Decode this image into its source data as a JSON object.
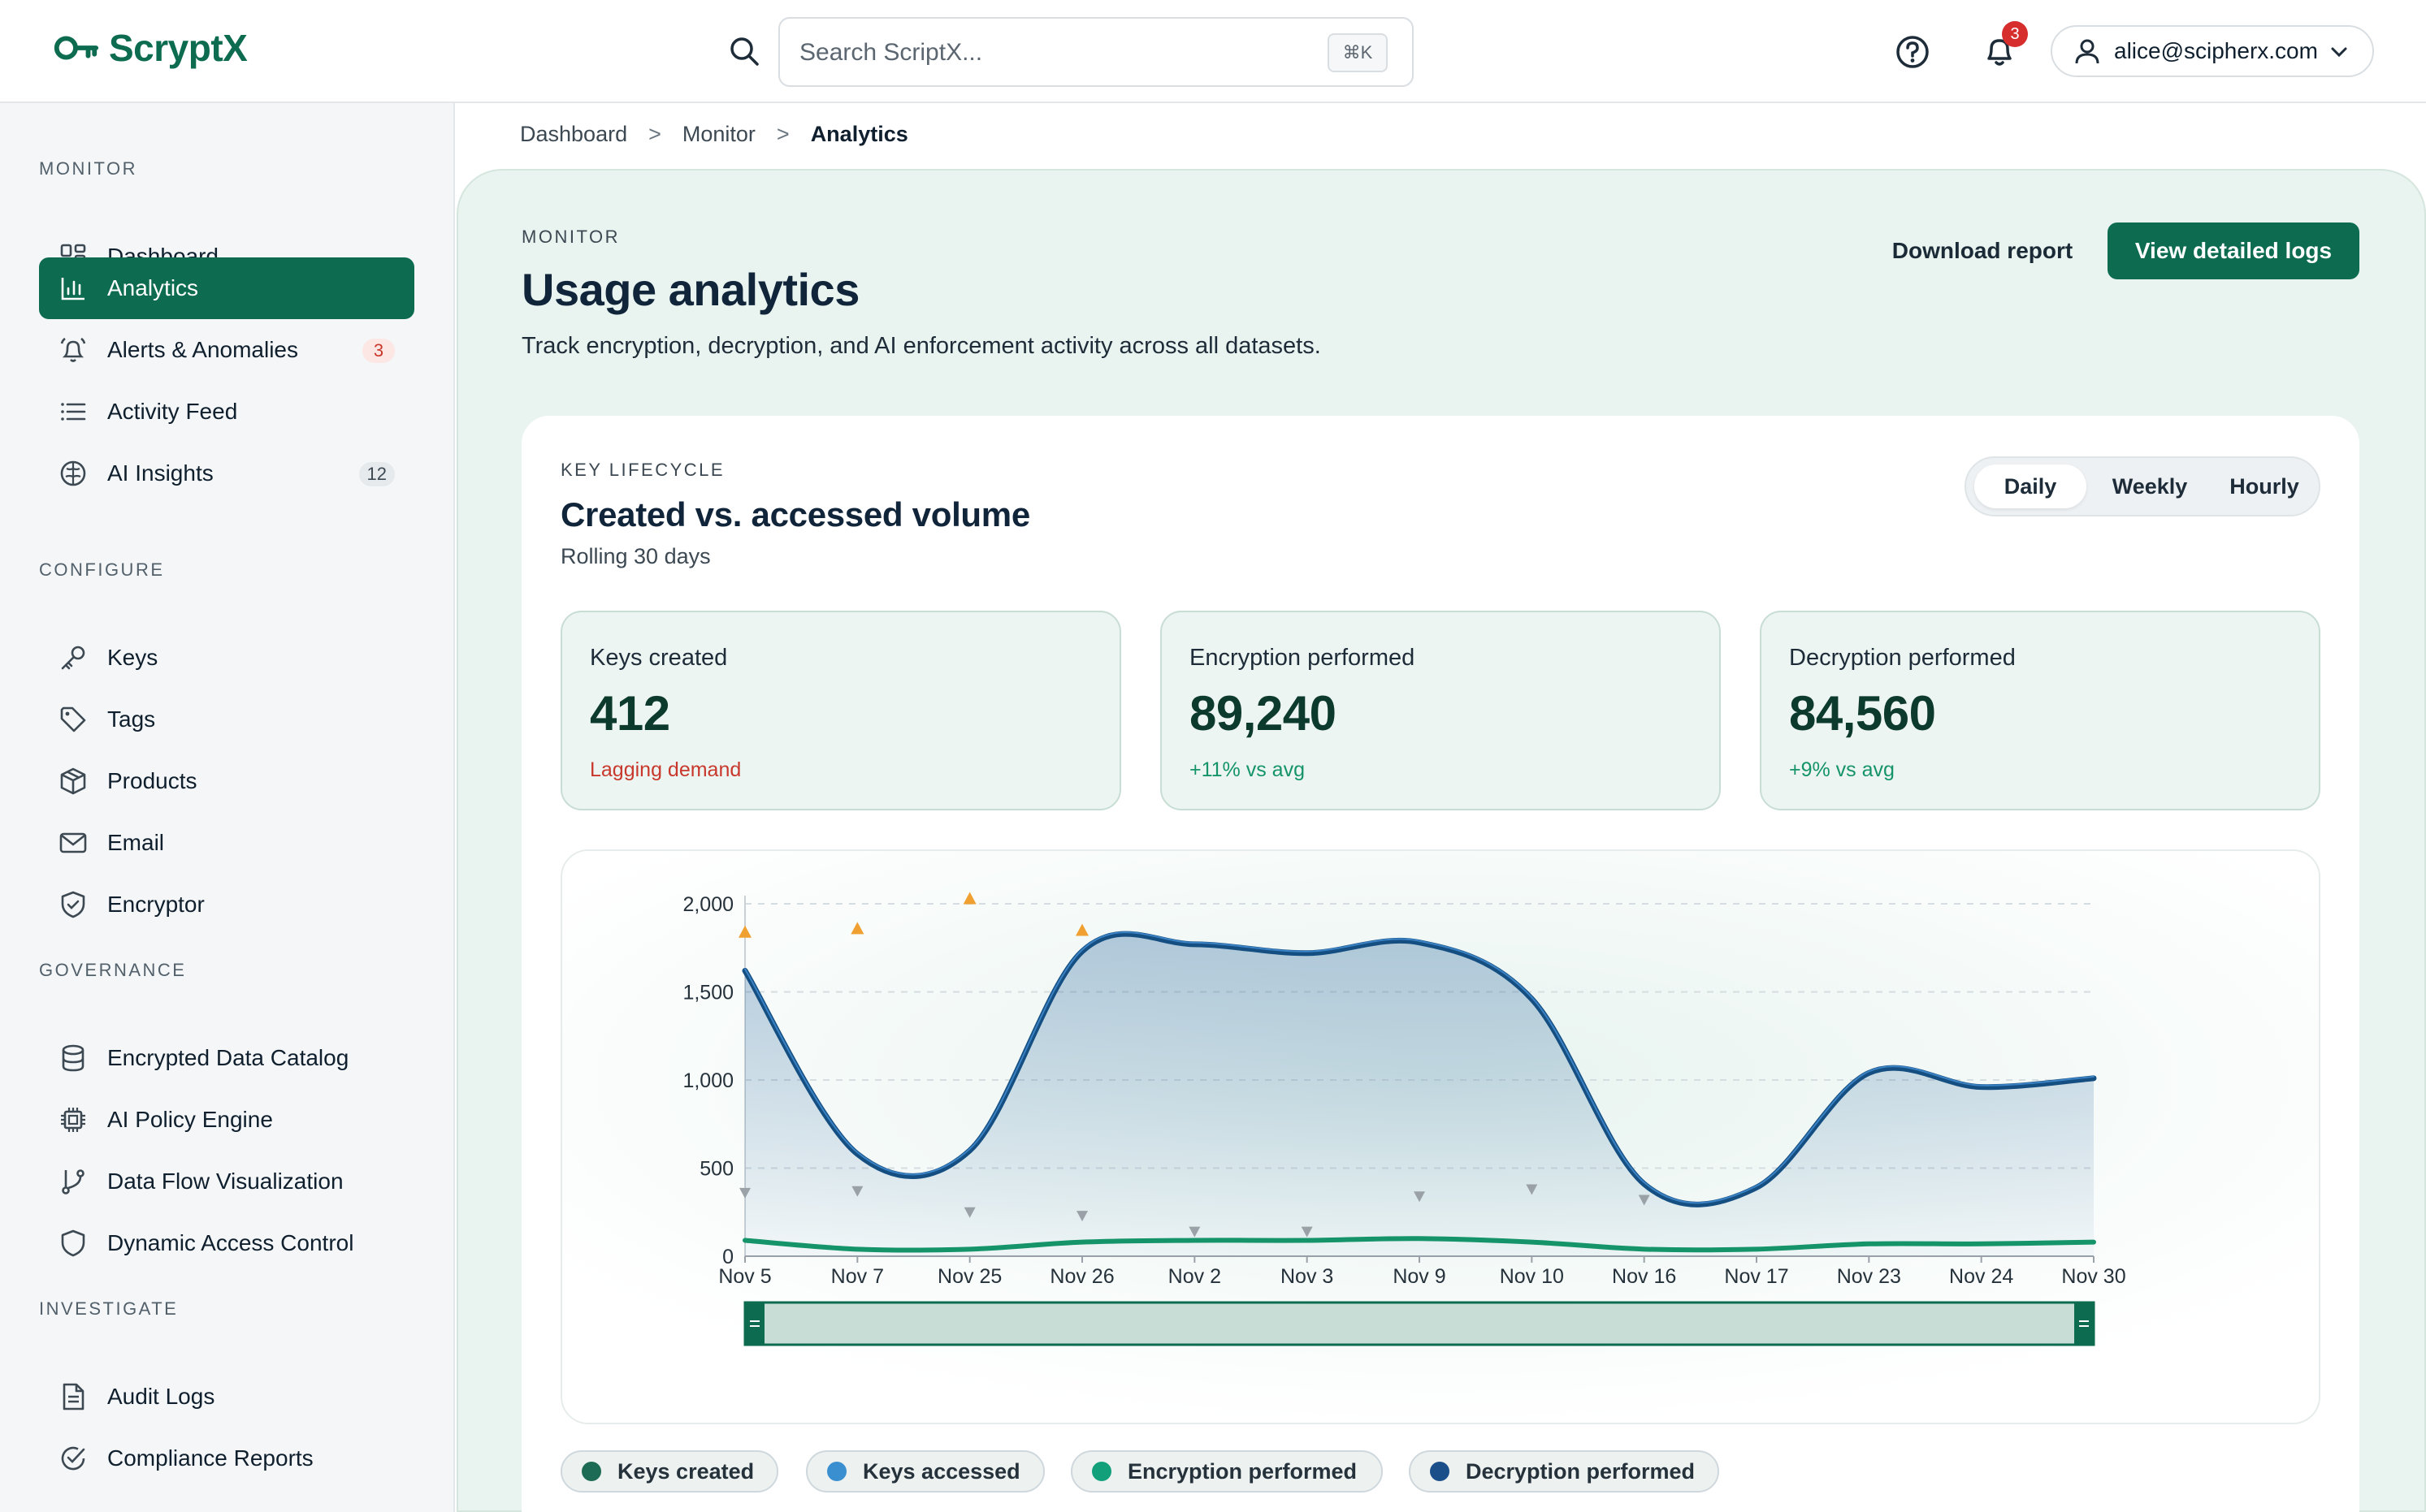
{
  "app": {
    "name": "ScryptX",
    "brand_color": "#0d6b50"
  },
  "header": {
    "search": {
      "placeholder": "Search ScriptX...",
      "shortcut": "⌘K"
    },
    "notifications_count": "3",
    "user_email": "alice@scipherx.com"
  },
  "sidebar": {
    "sections": [
      {
        "label": "MONITOR",
        "items": [
          {
            "label": "Dashboard",
            "icon": "dashboard-icon"
          },
          {
            "label": "Analytics",
            "icon": "bar-chart-icon",
            "active": true
          },
          {
            "label": "Alerts & Anomalies",
            "icon": "bell-alert-icon",
            "badge": "3"
          },
          {
            "label": "Activity Feed",
            "icon": "list-icon"
          },
          {
            "label": "AI Insights",
            "icon": "brain-icon",
            "badge": "12"
          }
        ]
      },
      {
        "label": "CONFIGURE",
        "items": [
          {
            "label": "Keys",
            "icon": "key-icon"
          },
          {
            "label": "Tags",
            "icon": "tag-icon"
          },
          {
            "label": "Products",
            "icon": "box-icon"
          },
          {
            "label": "Email",
            "icon": "mail-icon"
          },
          {
            "label": "Encryptor",
            "icon": "shield-check-icon"
          }
        ]
      },
      {
        "label": "GOVERNANCE",
        "items": [
          {
            "label": "Encrypted Data Catalog",
            "icon": "database-icon"
          },
          {
            "label": "AI Policy Engine",
            "icon": "cpu-icon"
          },
          {
            "label": "Data Flow Visualization",
            "icon": "git-branch-icon"
          },
          {
            "label": "Dynamic Access Control",
            "icon": "shield-icon"
          }
        ]
      },
      {
        "label": "INVESTIGATE",
        "items": [
          {
            "label": "Audit Logs",
            "icon": "document-icon"
          },
          {
            "label": "Compliance Reports",
            "icon": "check-circle-icon"
          }
        ]
      }
    ]
  },
  "breadcrumb": [
    "Dashboard",
    "Monitor",
    "Analytics"
  ],
  "page": {
    "eyebrow": "MONITOR",
    "title": "Usage analytics",
    "subtitle": "Track encryption, decryption, and AI enforcement activity across all datasets.",
    "download_label": "Download report",
    "view_logs_label": "View detailed logs"
  },
  "card": {
    "eyebrow": "KEY LIFECYCLE",
    "title": "Created vs. accessed volume",
    "subtitle": "Rolling 30 days",
    "tabs": [
      {
        "label": "Daily",
        "active": true
      },
      {
        "label": "Weekly"
      },
      {
        "label": "Hourly"
      }
    ],
    "stats": [
      {
        "label": "Keys created",
        "value": "412",
        "note": "Lagging demand",
        "tone": "bad"
      },
      {
        "label": "Encryption performed",
        "value": "89,240",
        "note": "+11% vs avg",
        "tone": "good"
      },
      {
        "label": "Decryption performed",
        "value": "84,560",
        "note": "+9% vs avg",
        "tone": "good"
      }
    ]
  },
  "chart_data": {
    "type": "area",
    "categories": [
      "Nov 5",
      "Nov 7",
      "Nov 25",
      "Nov 26",
      "Nov 2",
      "Nov 3",
      "Nov 9",
      "Nov 10",
      "Nov 16",
      "Nov 17",
      "Nov 23",
      "Nov 24",
      "Nov 30"
    ],
    "ylim": [
      0,
      2000
    ],
    "yticks": [
      0,
      500,
      1000,
      1500,
      2000
    ],
    "ytick_labels": [
      "0",
      "500",
      "1,000",
      "1,500",
      "2,000"
    ],
    "grid": true,
    "series": [
      {
        "name": "Keys accessed",
        "color": "#1f5f99",
        "values": [
          1620,
          580,
          600,
          1730,
          1770,
          1720,
          1780,
          1460,
          410,
          390,
          1040,
          960,
          1010
        ]
      },
      {
        "name": "Encryption performed",
        "color": "#159469",
        "values": [
          90,
          40,
          40,
          80,
          90,
          90,
          100,
          80,
          40,
          40,
          70,
          70,
          80
        ]
      }
    ],
    "markers_up": {
      "color": "#f0a030",
      "points": [
        [
          0,
          1840
        ],
        [
          1,
          1860
        ],
        [
          2,
          2030
        ],
        [
          3,
          1850
        ]
      ]
    },
    "markers_down": {
      "color": "#9aa2a8",
      "points": [
        [
          0,
          360
        ],
        [
          1,
          370
        ],
        [
          2,
          250
        ],
        [
          3,
          230
        ],
        [
          4,
          140
        ],
        [
          5,
          140
        ],
        [
          6,
          340
        ],
        [
          7,
          380
        ],
        [
          8,
          320
        ]
      ]
    },
    "range_selector": {
      "start": 0,
      "end": 1
    }
  },
  "legend": [
    {
      "label": "Keys created",
      "color": "#1d6b54"
    },
    {
      "label": "Keys accessed",
      "color": "#3a8fd0"
    },
    {
      "label": "Encryption performed",
      "color": "#11a07a"
    },
    {
      "label": "Decryption performed",
      "color": "#1b4f8a"
    }
  ]
}
